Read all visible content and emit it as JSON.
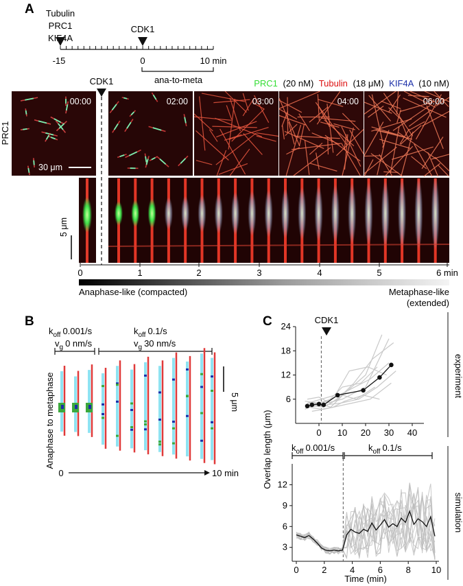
{
  "panels": {
    "a": {
      "letter": "A",
      "timeline": {
        "left_label": [
          "Tubulin",
          "PRC1",
          "KIF4A"
        ],
        "marker": "CDK1",
        "tick_labels": [
          "-15",
          "0",
          "10 min"
        ],
        "bracket_label": "ana-to-meta"
      },
      "legend": {
        "prc1": "PRC1",
        "prc1_conc": "(20 nM)",
        "tubulin": "Tubulin",
        "tubulin_conc": "(18 μM)",
        "kif4a": "KIF4A",
        "kif4a_conc": "(10 nM)"
      },
      "colors": {
        "prc1": "#33dd33",
        "tubulin": "#dd1111",
        "kif4a": "#1a2ea8"
      },
      "row_label": "PRC1",
      "cdk1_marker": "CDK1",
      "frame_times": [
        "00:00",
        "02:00",
        "03:00",
        "04:00",
        "06:00"
      ],
      "scalebar_label": "30 μm",
      "kymo_scalebar_label": "5 μm",
      "kymo_axis": [
        "0",
        "1",
        "2",
        "3",
        "4",
        "5",
        "6 min"
      ],
      "gradient_left": "Anaphase-like (compacted)",
      "gradient_right": [
        "Metaphase-like",
        "(extended)"
      ]
    },
    "b": {
      "letter": "B",
      "param_left": {
        "koff": "k",
        "koff_sub": "off",
        "koff_val": "0.001/s",
        "vg": "v",
        "vg_sub": "g",
        "vg_val": "0 nm/s"
      },
      "param_right": {
        "koff": "k",
        "koff_sub": "off",
        "koff_val": "0.1/s",
        "vg": "v",
        "vg_sub": "g",
        "vg_val": "30 nm/s"
      },
      "ylabel": "Anaphase to metaphase",
      "scalebar_label": "5 μm",
      "x_start": "0",
      "x_end": "10 min"
    },
    "c": {
      "letter": "C",
      "marker": "CDK1",
      "side_top": "experiment",
      "side_bottom": "simulation",
      "param_left": {
        "k": "k",
        "sub": "off",
        "val": "0.001/s"
      },
      "param_right": {
        "k": "k",
        "sub": "off",
        "val": "0.1/s"
      }
    }
  },
  "chart_data": [
    {
      "type": "line",
      "title": "",
      "xlabel": "",
      "ylabel": "Overlap length (μm)",
      "xlim": [
        -10,
        45
      ],
      "ylim": [
        0,
        24
      ],
      "xticks": [
        0,
        10,
        20,
        30,
        40
      ],
      "yticks": [
        6,
        12,
        18,
        24
      ],
      "annotation": "CDK1",
      "marker_x": 1,
      "series": [
        {
          "role": "mean",
          "x": [
            -5,
            -3,
            0,
            2,
            8,
            19,
            26,
            31
          ],
          "y": [
            4.3,
            4.6,
            4.8,
            4.6,
            7.0,
            8.2,
            11.4,
            14.5
          ]
        }
      ],
      "traces": [
        {
          "x": [
            -5,
            -1,
            3,
            10,
            20,
            30
          ],
          "y": [
            4,
            4.5,
            5,
            6,
            9,
            21
          ]
        },
        {
          "x": [
            -5,
            0,
            5,
            12,
            20,
            27
          ],
          "y": [
            5,
            5,
            4,
            8,
            12,
            22
          ]
        },
        {
          "x": [
            -4,
            1,
            6,
            14,
            22,
            31
          ],
          "y": [
            4,
            3.5,
            4,
            5,
            6,
            10
          ]
        },
        {
          "x": [
            -6,
            -1,
            4,
            10,
            18,
            25
          ],
          "y": [
            3.5,
            5,
            5.5,
            9,
            10,
            14
          ]
        },
        {
          "x": [
            -5,
            0,
            5,
            10,
            16,
            24
          ],
          "y": [
            6,
            6.5,
            5,
            7,
            6,
            9
          ]
        },
        {
          "x": [
            -4,
            2,
            8,
            15,
            23,
            32
          ],
          "y": [
            4.5,
            4,
            6,
            10,
            16,
            20
          ]
        },
        {
          "x": [
            -5,
            1,
            7,
            13,
            21,
            29
          ],
          "y": [
            5,
            6,
            7,
            13,
            14,
            12
          ]
        },
        {
          "x": [
            -3,
            2,
            6,
            11,
            19,
            26
          ],
          "y": [
            3,
            3.5,
            4,
            5.5,
            7,
            6
          ]
        },
        {
          "x": [
            -6,
            0,
            5,
            12,
            22,
            30
          ],
          "y": [
            5.5,
            5,
            6,
            8,
            11,
            15
          ]
        },
        {
          "x": [
            -5,
            1,
            9,
            17,
            25,
            33
          ],
          "y": [
            4,
            4.5,
            5,
            6,
            9,
            13
          ]
        }
      ]
    },
    {
      "type": "line",
      "title": "",
      "xlabel": "Time (min)",
      "ylabel": "Overlap length (μm)",
      "xlim": [
        0,
        10
      ],
      "ylim": [
        1,
        15
      ],
      "xticks": [
        0,
        2,
        4,
        6,
        8,
        10
      ],
      "yticks": [
        3,
        6,
        9,
        12
      ],
      "marker_x": 3.35,
      "mean": {
        "x": [
          0,
          0.3,
          0.6,
          0.9,
          1.2,
          1.5,
          1.8,
          2.1,
          2.4,
          2.7,
          3.0,
          3.3,
          3.6,
          3.9,
          4.2,
          4.5,
          4.8,
          5.1,
          5.4,
          5.7,
          6.0,
          6.3,
          6.6,
          6.9,
          7.2,
          7.5,
          7.8,
          8.1,
          8.4,
          8.7,
          9.0,
          9.3,
          9.6,
          9.9
        ],
        "y": [
          4.8,
          4.6,
          4.4,
          4.7,
          4.2,
          3.6,
          2.9,
          2.6,
          2.5,
          2.6,
          2.5,
          2.6,
          4.8,
          5.6,
          5.2,
          5.0,
          5.6,
          5.3,
          6.5,
          5.5,
          6.2,
          7.0,
          5.9,
          6.4,
          6.0,
          7.2,
          6.6,
          8.2,
          6.3,
          7.1,
          6.7,
          6.0,
          7.4,
          4.6
        ]
      }
    }
  ]
}
